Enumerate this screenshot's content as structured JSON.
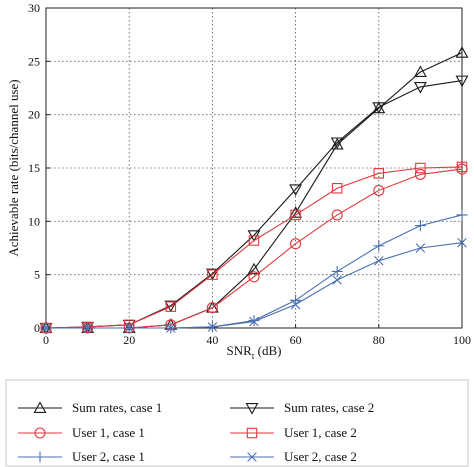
{
  "chart_data": {
    "type": "line",
    "title": "",
    "xlabel_base": "SNR",
    "xlabel_sub": "t",
    "xlabel_unit": " (dB)",
    "ylabel": "Achievable rate (bits/channel use)",
    "x": [
      0,
      10,
      20,
      30,
      40,
      50,
      60,
      70,
      80,
      90,
      100
    ],
    "xlim": [
      0,
      100
    ],
    "ylim": [
      0,
      30
    ],
    "xticks": [
      "0",
      "20",
      "40",
      "60",
      "80",
      "100"
    ],
    "yticks": [
      "0",
      "5",
      "10",
      "15",
      "20",
      "25",
      "30"
    ],
    "grid": "dotted",
    "legend_position": "below",
    "series": [
      {
        "name": "Sum rates, case 1",
        "color": "#1a1a1a",
        "marker": "triangle-up",
        "values": [
          0,
          0,
          0,
          0.3,
          1.9,
          5.5,
          10.8,
          17.2,
          20.6,
          24.0,
          25.8
        ]
      },
      {
        "name": "Sum rates, case 2",
        "color": "#1a1a1a",
        "marker": "triangle-down",
        "values": [
          0,
          0.1,
          0.3,
          2.1,
          5.1,
          8.7,
          13.0,
          17.4,
          20.7,
          22.6,
          23.2
        ]
      },
      {
        "name": "User 1, case 1",
        "color": "#e0393e",
        "marker": "circle",
        "values": [
          0,
          0,
          0,
          0.3,
          1.9,
          4.8,
          7.9,
          10.6,
          12.9,
          14.4,
          14.9
        ]
      },
      {
        "name": "User 1, case 2",
        "color": "#e0393e",
        "marker": "square",
        "values": [
          0,
          0.1,
          0.3,
          2.0,
          5.0,
          8.2,
          10.6,
          13.1,
          14.5,
          15.0,
          15.1
        ]
      },
      {
        "name": "User 2, case 1",
        "color": "#4a6fb0",
        "marker": "plus",
        "values": [
          0,
          0,
          0,
          0,
          0.1,
          0.7,
          2.6,
          5.3,
          7.7,
          9.6,
          10.6
        ]
      },
      {
        "name": "User 2, case 2",
        "color": "#4a6fb0",
        "marker": "x",
        "values": [
          0,
          0,
          0,
          0,
          0.1,
          0.6,
          2.2,
          4.5,
          6.3,
          7.5,
          8.0
        ]
      }
    ]
  }
}
